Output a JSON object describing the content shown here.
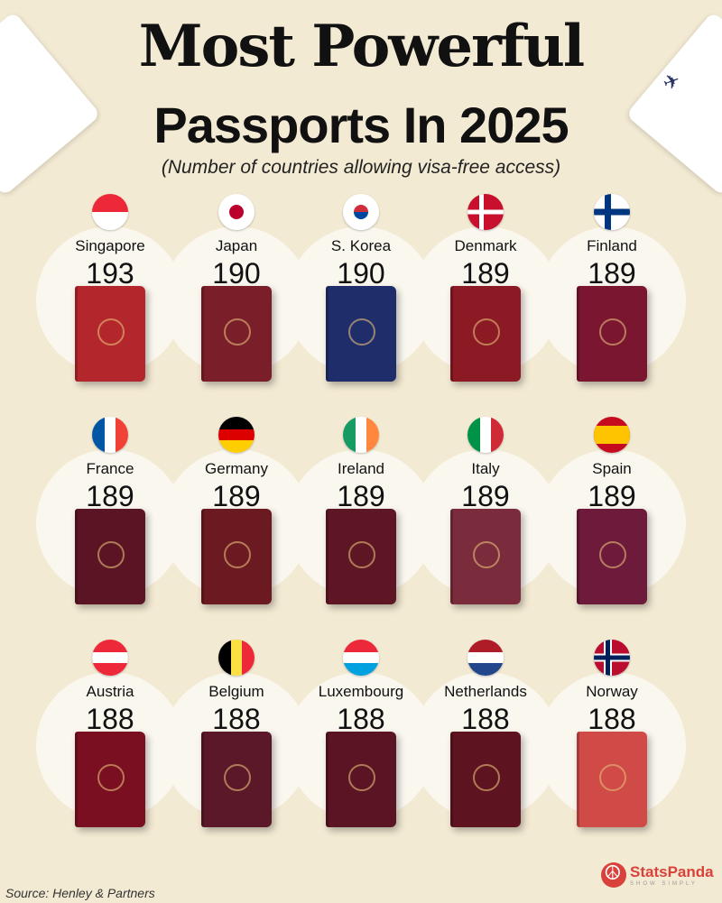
{
  "title": "Most Powerful",
  "title2": "Passports In 2025",
  "subtitle": "(Number of countries allowing visa-free access)",
  "source": "Source: Henley & Partners",
  "brand": {
    "name": "StatsPanda",
    "tagline": "SHOW SIMPLY",
    "color": "#d9423a"
  },
  "countries": [
    {
      "name": "Singapore",
      "value": 193,
      "flag": "singapore",
      "passport_color": "#b3262b"
    },
    {
      "name": "Japan",
      "value": 190,
      "flag": "japan",
      "passport_color": "#7a1e2a"
    },
    {
      "name": "S. Korea",
      "value": 190,
      "flag": "south-korea",
      "passport_color": "#1f2d6b"
    },
    {
      "name": "Denmark",
      "value": 189,
      "flag": "denmark",
      "passport_color": "#8b1a24"
    },
    {
      "name": "Finland",
      "value": 189,
      "flag": "finland",
      "passport_color": "#7a1630"
    },
    {
      "name": "France",
      "value": 189,
      "flag": "france",
      "passport_color": "#5b1424"
    },
    {
      "name": "Germany",
      "value": 189,
      "flag": "germany",
      "passport_color": "#6b1a22"
    },
    {
      "name": "Ireland",
      "value": 189,
      "flag": "ireland",
      "passport_color": "#5e1624"
    },
    {
      "name": "Italy",
      "value": 189,
      "flag": "italy",
      "passport_color": "#7b2c3c"
    },
    {
      "name": "Spain",
      "value": 189,
      "flag": "spain",
      "passport_color": "#6e1a3a"
    },
    {
      "name": "Austria",
      "value": 188,
      "flag": "austria",
      "passport_color": "#7a0f22"
    },
    {
      "name": "Belgium",
      "value": 188,
      "flag": "belgium",
      "passport_color": "#5a1828"
    },
    {
      "name": "Luxembourg",
      "value": 188,
      "flag": "luxembourg",
      "passport_color": "#5a1424"
    },
    {
      "name": "Netherlands",
      "value": 188,
      "flag": "netherlands",
      "passport_color": "#5e1420"
    },
    {
      "name": "Norway",
      "value": 188,
      "flag": "norway",
      "passport_color": "#d04a48"
    }
  ]
}
